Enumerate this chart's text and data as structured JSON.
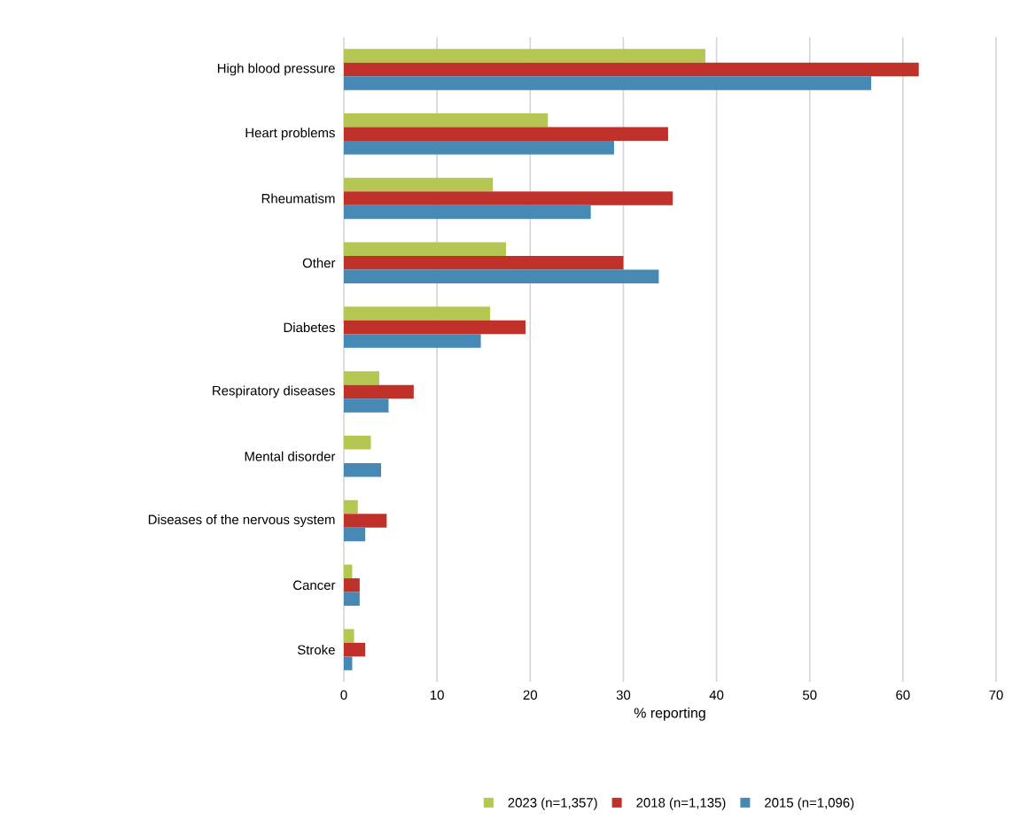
{
  "chart_data": {
    "type": "bar",
    "orientation": "horizontal",
    "xlabel": "% reporting",
    "categories": [
      "High blood pressure",
      "Heart problems",
      "Rheumatism",
      "Other",
      "Diabetes",
      "Respiratory diseases",
      "Mental disorder",
      "Diseases of the nervous system",
      "Cancer",
      "Stroke"
    ],
    "series": [
      {
        "name": "2023 (n=1,357)",
        "color": "#b5c752",
        "values": [
          38.8,
          21.9,
          16.0,
          17.4,
          15.7,
          3.8,
          2.9,
          1.5,
          0.9,
          1.1
        ]
      },
      {
        "name": "2018 (n=1,135)",
        "color": "#c0312a",
        "values": [
          61.7,
          34.8,
          35.3,
          30.0,
          19.5,
          7.5,
          null,
          4.6,
          1.7,
          2.3
        ]
      },
      {
        "name": "2015 (n=1,096)",
        "color": "#4589b4",
        "values": [
          56.6,
          29.0,
          26.5,
          33.8,
          14.7,
          4.8,
          4.0,
          2.3,
          1.7,
          0.9
        ]
      }
    ],
    "xlim": [
      0,
      70
    ],
    "xticks": [
      0,
      10,
      20,
      30,
      40,
      50,
      60,
      70
    ],
    "grid": "x",
    "legend": "bottom"
  }
}
